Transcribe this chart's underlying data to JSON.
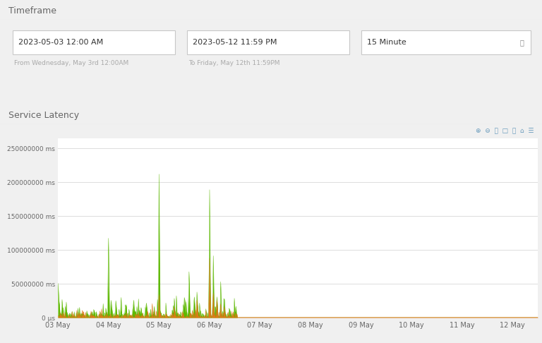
{
  "title_timeframe": "Timeframe",
  "title_latency": "Service Latency",
  "date_start": "2023-05-03 12:00 AM",
  "date_end": "2023-05-12 11:59 PM",
  "date_start_sub": "From Wednesday, May 3rd 12:00AM",
  "date_end_sub": "To Friday, May 12th 11:59PM",
  "interval": "15 Minute",
  "bg_color": "#f0f0f0",
  "panel_color": "#ffffff",
  "separator_color": "#cccccc",
  "grid_color": "#dddddd",
  "text_color": "#666666",
  "label_color": "#444444",
  "green_color": "#5cb800",
  "orange_color": "#e07818",
  "x_labels": [
    "03 May",
    "04 May",
    "05 May",
    "06 May",
    "07 May",
    "08 May",
    "09 May",
    "10 May",
    "11 May",
    "12 May"
  ],
  "y_ticks": [
    0,
    50000000,
    100000000,
    150000000,
    200000000,
    250000000
  ],
  "ylim": [
    0,
    265000000
  ],
  "xlim": [
    0,
    9.5
  ]
}
